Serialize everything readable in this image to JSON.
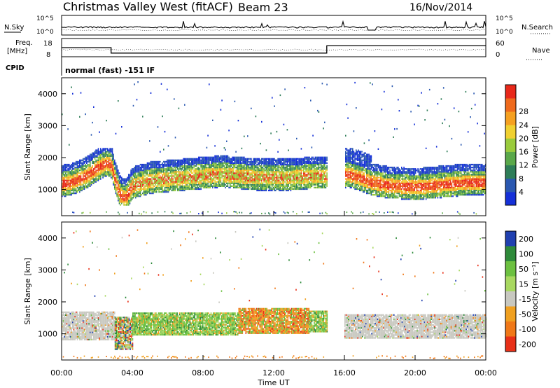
{
  "header": {
    "station": "Christmas Valley West (fitACF)",
    "beam": "Beam 23",
    "date": "16/Nov/2014"
  },
  "labels": {
    "nsky": "N.Sky",
    "nsearch": "N.Search",
    "freq": "Freq.",
    "freq_unit": "[MHz]",
    "nave": "Nave",
    "cpid": "CPID",
    "cpid_value": "normal (fast) -151 IF",
    "ylabel": "Slant Range [km]",
    "xlabel": "Time UT",
    "power_label": "Power [dB]",
    "velocity_label": "Velocity [m s⁻¹]"
  },
  "noise_axis": {
    "left_ticks": [
      "10^5",
      "10^0"
    ],
    "right_ticks": [
      "10^5",
      "10^0"
    ]
  },
  "freq_axis": {
    "left_ticks": [
      "18",
      "8"
    ],
    "right_ticks": [
      "60",
      "0"
    ]
  },
  "range_ticks": [
    "1000",
    "2000",
    "3000",
    "4000"
  ],
  "time_ticks": [
    "00:00",
    "04:00",
    "08:00",
    "12:00",
    "16:00",
    "20:00",
    "00:00"
  ],
  "power_scale": {
    "ticks": [
      "4",
      "8",
      "12",
      "16",
      "20",
      "24",
      "28"
    ],
    "colors": [
      "#1530d8",
      "#2a58b0",
      "#2e7d58",
      "#5aa84a",
      "#9acb3c",
      "#f0d030",
      "#f5a020",
      "#ef6a1c",
      "#e8281a"
    ]
  },
  "velocity_scale": {
    "ticks": [
      "200",
      "100",
      "50",
      "15",
      "-15",
      "-50",
      "-100",
      "-200"
    ],
    "colors": [
      "#2040b0",
      "#2e8a3a",
      "#6cc040",
      "#a8d860",
      "#c8c8c0",
      "#f0a020",
      "#f07818",
      "#e83018"
    ]
  },
  "chart_data": {
    "type": "heatmap",
    "x_range_hours": [
      0,
      24
    ],
    "y_range_km": [
      180,
      4500
    ],
    "power_band_center_km": [
      [
        0.0,
        1100
      ],
      [
        0.5,
        1150
      ],
      [
        1.0,
        1250
      ],
      [
        1.5,
        1400
      ],
      [
        2.0,
        1600
      ],
      [
        2.5,
        1750
      ],
      [
        2.8,
        1700
      ],
      [
        3.0,
        1250
      ],
      [
        3.3,
        750
      ],
      [
        3.6,
        650
      ],
      [
        4.0,
        1050
      ],
      [
        5.0,
        1200
      ],
      [
        6.0,
        1250
      ],
      [
        7.0,
        1300
      ],
      [
        8.0,
        1350
      ],
      [
        9.0,
        1400
      ],
      [
        10.0,
        1350
      ],
      [
        11.0,
        1300
      ],
      [
        12.0,
        1300
      ],
      [
        13.0,
        1300
      ],
      [
        14.0,
        1350
      ],
      [
        15.0,
        1350
      ],
      [
        15.5,
        1350
      ],
      [
        16.2,
        1400
      ],
      [
        16.8,
        1300
      ],
      [
        17.5,
        1150
      ],
      [
        18.5,
        1050
      ],
      [
        20.0,
        1000
      ],
      [
        21.0,
        1050
      ],
      [
        22.0,
        1100
      ],
      [
        23.0,
        1150
      ],
      [
        24.0,
        1150
      ]
    ],
    "gap_hours": [
      15.0,
      16.0
    ],
    "echo_region_velocity": [
      {
        "from": 0.0,
        "to": 3.0,
        "class": "ground",
        "top": 1700,
        "bottom": 800
      },
      {
        "from": 3.0,
        "to": 4.0,
        "class": "mixed",
        "top": 1500,
        "bottom": 500
      },
      {
        "from": 4.0,
        "to": 10.0,
        "class": "green",
        "top": 1650,
        "bottom": 950
      },
      {
        "from": 10.0,
        "to": 14.0,
        "class": "orange",
        "top": 1800,
        "bottom": 1000
      },
      {
        "from": 14.0,
        "to": 15.0,
        "class": "green",
        "top": 1700,
        "bottom": 1050
      },
      {
        "from": 16.0,
        "to": 24.0,
        "class": "ground",
        "top": 1600,
        "bottom": 850
      }
    ],
    "noise_level": "near 10^0 with spikes up to 10^5",
    "frequency_mhz": [
      {
        "from": 0.0,
        "to": 2.8,
        "value": 13
      },
      {
        "from": 2.8,
        "to": 15.0,
        "value": 10
      },
      {
        "from": 15.0,
        "to": 24.0,
        "value": 14
      }
    ]
  }
}
